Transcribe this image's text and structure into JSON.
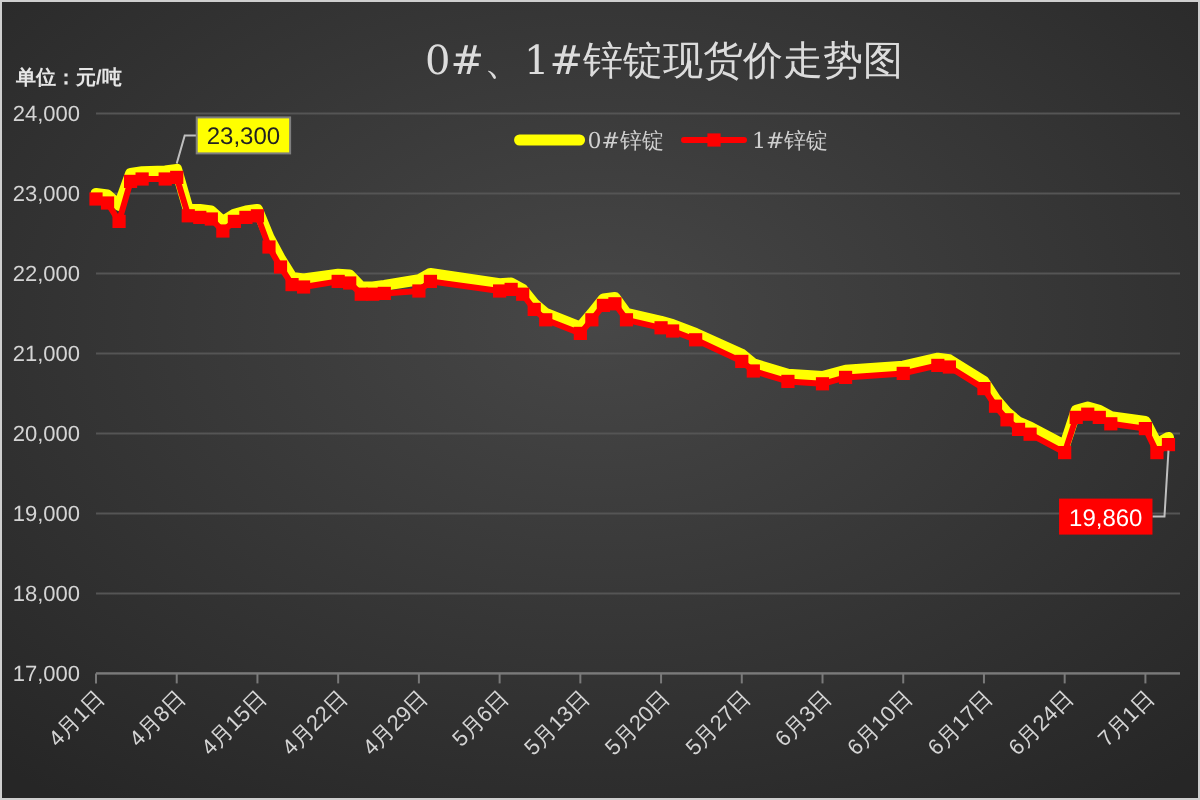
{
  "chart_data": {
    "type": "line",
    "title": "0#、1#锌锭现货价走势图",
    "ylabel": "单位：元/吨",
    "x": [
      "--04-01",
      "--04-02",
      "--04-03",
      "--04-04",
      "--04-05",
      "--04-07",
      "--04-08",
      "--04-09",
      "--04-10",
      "--04-11",
      "--04-12",
      "--04-13",
      "--04-14",
      "--04-15",
      "--04-16",
      "--04-17",
      "--04-18",
      "--04-19",
      "--04-22",
      "--04-23",
      "--04-24",
      "--04-25",
      "--04-26",
      "--04-29",
      "--04-30",
      "--05-06",
      "--05-07",
      "--05-08",
      "--05-09",
      "--05-10",
      "--05-13",
      "--05-14",
      "--05-15",
      "--05-16",
      "--05-17",
      "--05-20",
      "--05-21",
      "--05-23",
      "--05-27",
      "--05-28",
      "--05-31",
      "--06-03",
      "--06-05",
      "--06-10",
      "--06-13",
      "--06-14",
      "--06-17",
      "--06-18",
      "--06-19",
      "--06-20",
      "--06-21",
      "--06-24",
      "--06-25",
      "--06-26",
      "--06-27",
      "--06-28",
      "--07-01",
      "--07-02",
      "--07-03"
    ],
    "series": [
      {
        "name": "0#锌锭",
        "color": "#ffff00",
        "marker": "none",
        "values": [
          23000,
          22980,
          22850,
          23250,
          23270,
          23280,
          23300,
          22800,
          22800,
          22780,
          22650,
          22740,
          22780,
          22800,
          22450,
          22180,
          21950,
          21930,
          21990,
          21980,
          21830,
          21830,
          21850,
          21920,
          22000,
          21870,
          21880,
          21800,
          21620,
          21500,
          21330,
          21500,
          21680,
          21700,
          21500,
          21400,
          21360,
          21250,
          20990,
          20870,
          20740,
          20710,
          20790,
          20840,
          20940,
          20920,
          20650,
          20430,
          20260,
          20140,
          20080,
          19850,
          20290,
          20330,
          20290,
          20210,
          20150,
          19870,
          19950
        ]
      },
      {
        "name": "1#锌锭",
        "color": "#ff0000",
        "marker": "square",
        "values": [
          22930,
          22880,
          22650,
          23150,
          23180,
          23180,
          23200,
          22720,
          22700,
          22680,
          22530,
          22650,
          22700,
          22720,
          22330,
          22080,
          21860,
          21830,
          21900,
          21880,
          21740,
          21740,
          21750,
          21780,
          21900,
          21780,
          21800,
          21740,
          21550,
          21420,
          21250,
          21420,
          21600,
          21620,
          21420,
          21320,
          21280,
          21170,
          20900,
          20780,
          20650,
          20620,
          20700,
          20750,
          20850,
          20830,
          20560,
          20340,
          20170,
          20050,
          19990,
          19760,
          20200,
          20240,
          20200,
          20120,
          20060,
          19760,
          19860
        ]
      }
    ],
    "xlim": [
      "--04-01",
      "--07-04"
    ],
    "xticks": [
      {
        "value": "--04-01",
        "label": "4月1日"
      },
      {
        "value": "--04-08",
        "label": "4月8日"
      },
      {
        "value": "--04-15",
        "label": "4月15日"
      },
      {
        "value": "--04-22",
        "label": "4月22日"
      },
      {
        "value": "--04-29",
        "label": "4月29日"
      },
      {
        "value": "--05-06",
        "label": "5月6日"
      },
      {
        "value": "--05-13",
        "label": "5月13日"
      },
      {
        "value": "--05-20",
        "label": "5月20日"
      },
      {
        "value": "--05-27",
        "label": "5月27日"
      },
      {
        "value": "--06-03",
        "label": "6月3日"
      },
      {
        "value": "--06-10",
        "label": "6月10日"
      },
      {
        "value": "--06-17",
        "label": "6月17日"
      },
      {
        "value": "--06-24",
        "label": "6月24日"
      },
      {
        "value": "--07-01",
        "label": "7月1日"
      }
    ],
    "ylim": [
      17000,
      24000
    ],
    "yticks": [
      {
        "value": 17000,
        "label": "17,000"
      },
      {
        "value": 18000,
        "label": "18,000"
      },
      {
        "value": 19000,
        "label": "19,000"
      },
      {
        "value": 20000,
        "label": "20,000"
      },
      {
        "value": 21000,
        "label": "21,000"
      },
      {
        "value": 22000,
        "label": "22,000"
      },
      {
        "value": 23000,
        "label": "23,000"
      },
      {
        "value": 24000,
        "label": "24,000"
      }
    ],
    "grid": "y",
    "legend": "top",
    "annotations": [
      {
        "text": "23,300",
        "x": "--04-08",
        "y": 23300
      },
      {
        "text": "19,860",
        "x": "--07-03",
        "y": 19860
      }
    ]
  }
}
